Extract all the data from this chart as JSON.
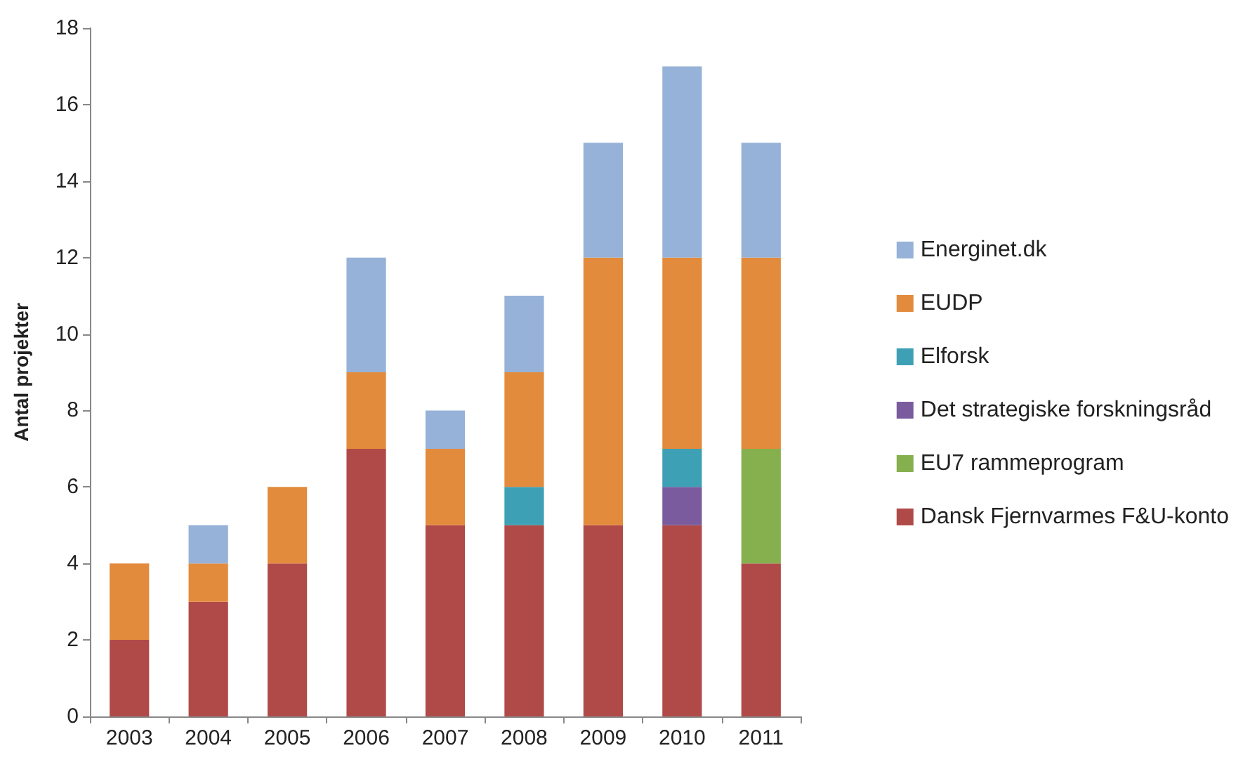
{
  "chart_data": {
    "type": "bar",
    "stacked": true,
    "ylabel": "Antal projekter",
    "categories": [
      "2003",
      "2004",
      "2005",
      "2006",
      "2007",
      "2008",
      "2009",
      "2010",
      "2011"
    ],
    "series": [
      {
        "name": "Dansk Fjernvarmes F&U-konto",
        "color": "#b04a48",
        "values": [
          2,
          3,
          4,
          7,
          5,
          5,
          5,
          5,
          4
        ]
      },
      {
        "name": "EU7 rammeprogram",
        "color": "#86b04e",
        "values": [
          0,
          0,
          0,
          0,
          0,
          0,
          0,
          0,
          3
        ]
      },
      {
        "name": "Det strategiske forskningsråd",
        "color": "#7a5c9e",
        "values": [
          0,
          0,
          0,
          0,
          0,
          0,
          0,
          1,
          0
        ]
      },
      {
        "name": "Elforsk",
        "color": "#3ea0b4",
        "values": [
          0,
          0,
          0,
          0,
          0,
          1,
          0,
          1,
          0
        ]
      },
      {
        "name": "EUDP",
        "color": "#e38b3c",
        "values": [
          2,
          1,
          2,
          2,
          2,
          3,
          7,
          5,
          5
        ]
      },
      {
        "name": "Energinet.dk",
        "color": "#96b2d8",
        "values": [
          0,
          1,
          0,
          3,
          1,
          2,
          3,
          5,
          3
        ]
      }
    ],
    "ylim": [
      0,
      18
    ],
    "yticks": [
      0,
      2,
      4,
      6,
      8,
      10,
      12,
      14,
      16,
      18
    ],
    "grid": false,
    "legend": "right"
  }
}
